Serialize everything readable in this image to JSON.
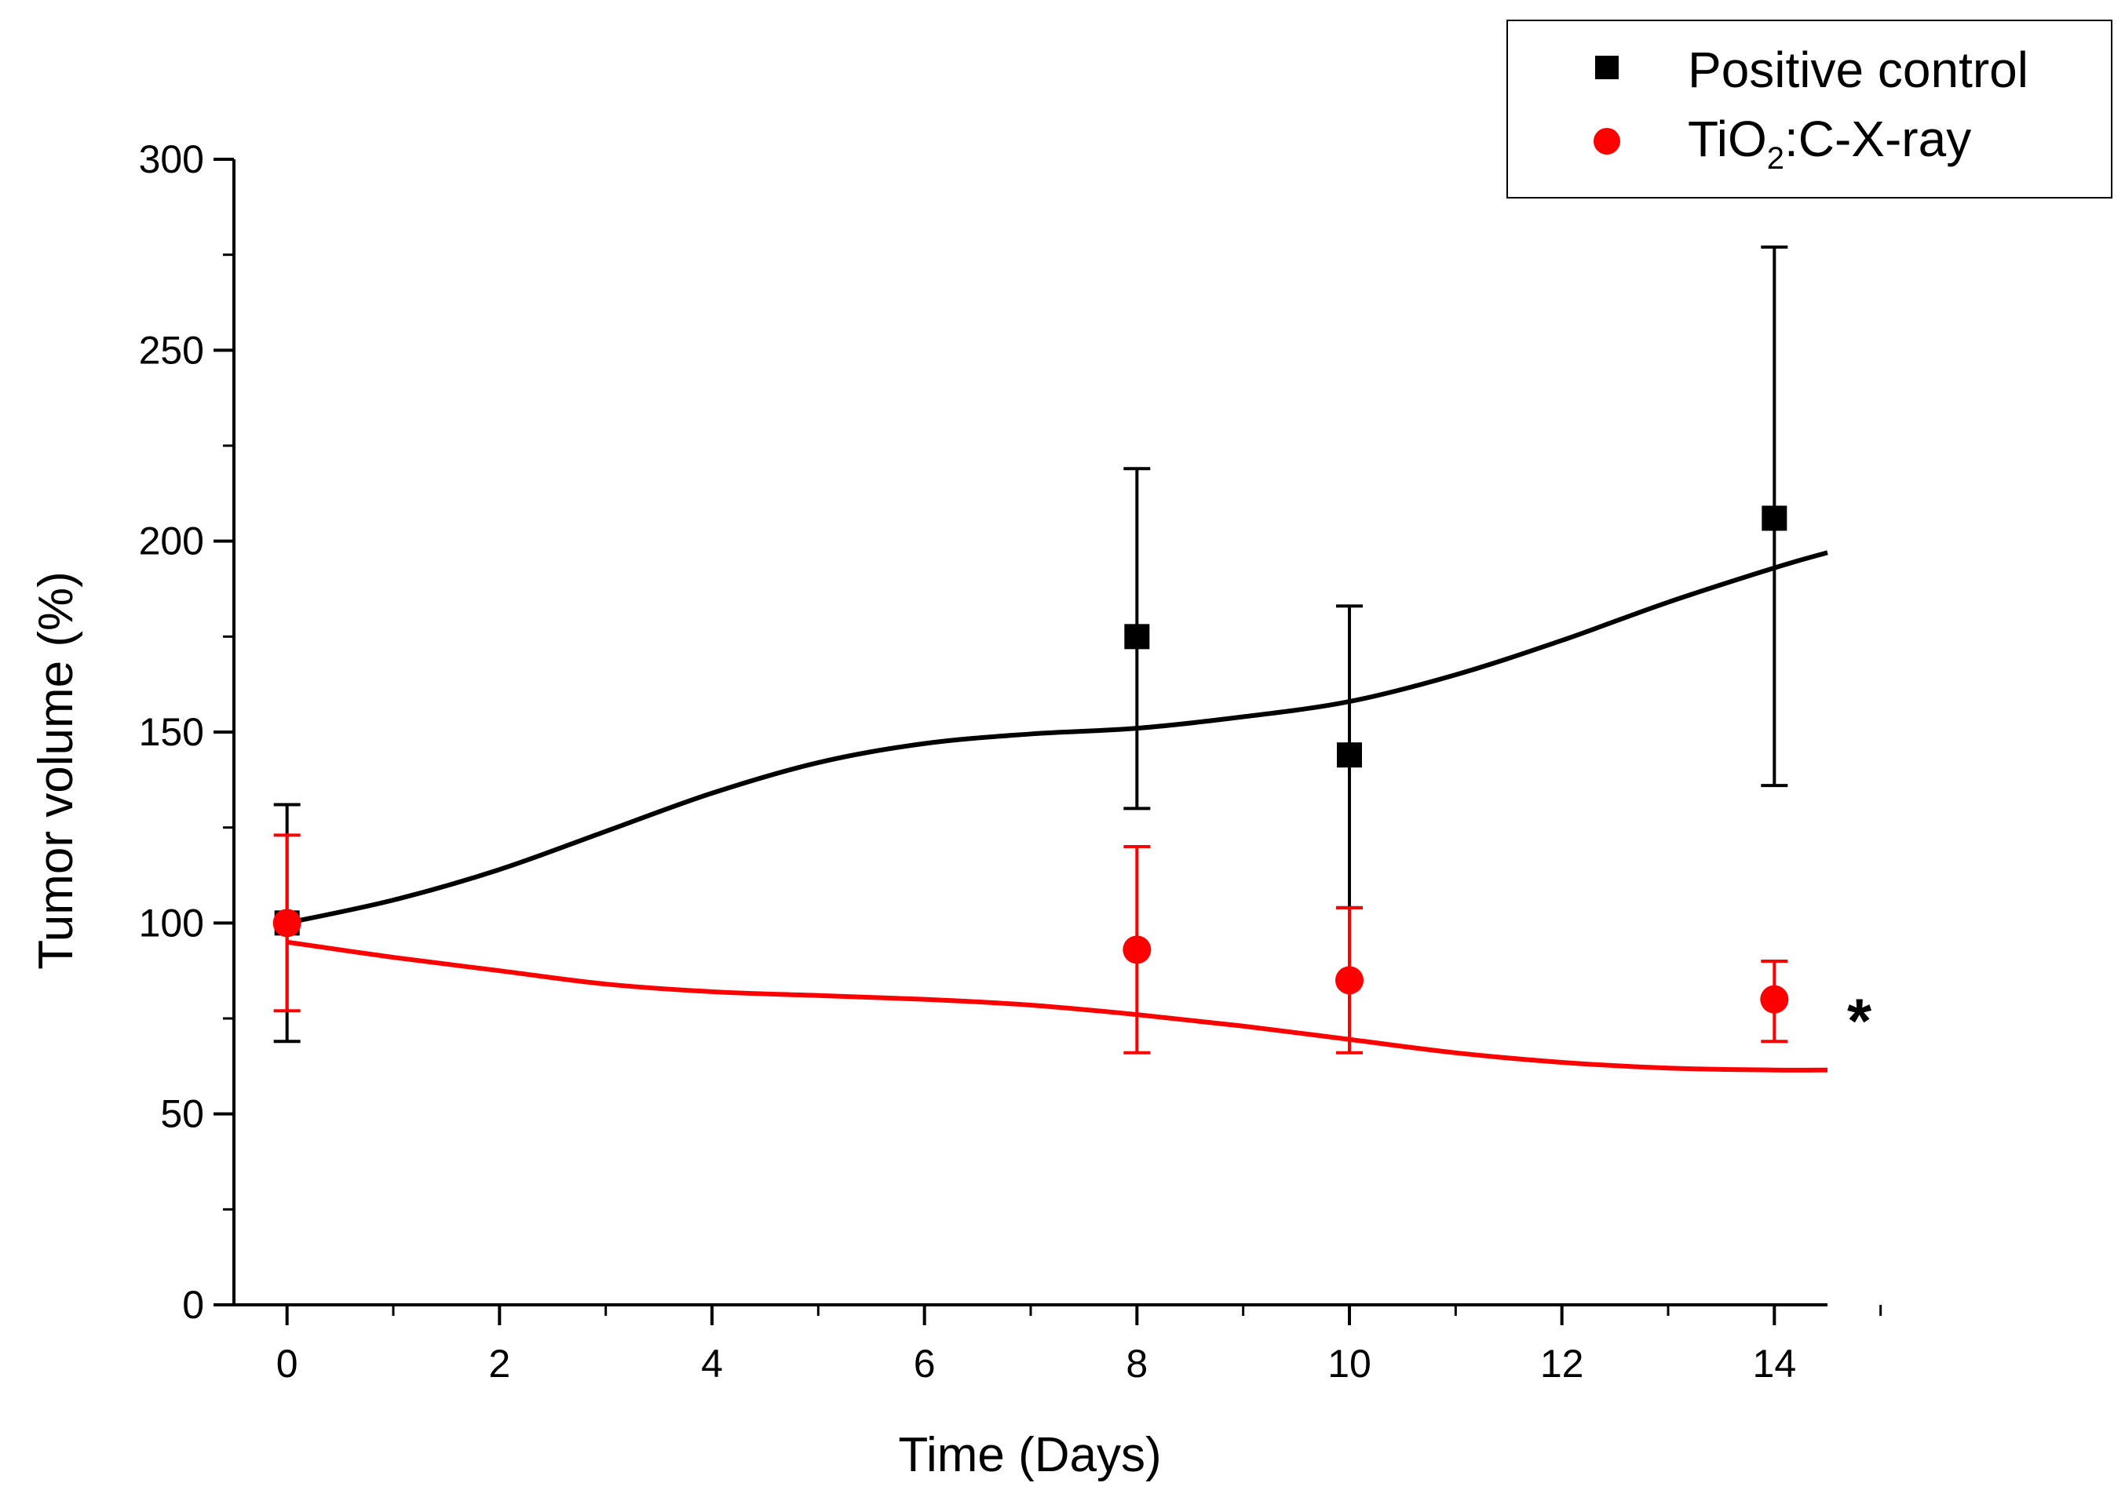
{
  "chart_data": {
    "type": "scatter",
    "title": "",
    "xlabel": "Time (Days)",
    "ylabel": "Tumor volume (%)",
    "xlim": [
      -0.5,
      14.5
    ],
    "ylim": [
      0,
      300
    ],
    "xticks": [
      0,
      2,
      4,
      6,
      8,
      10,
      12,
      14
    ],
    "yticks": [
      0,
      50,
      100,
      150,
      200,
      250,
      300
    ],
    "xtick_labels": [
      "0",
      "2",
      "4",
      "6",
      "8",
      "10",
      "12",
      "14"
    ],
    "ytick_labels": [
      "0",
      "50",
      "100",
      "150",
      "200",
      "250",
      "300"
    ],
    "legend_position": "top-right",
    "series": [
      {
        "name": "Positive control",
        "marker": "square",
        "color": "#000000",
        "points": [
          {
            "x": 0,
            "y": 100,
            "err_low": 69,
            "err_high": 131
          },
          {
            "x": 8,
            "y": 175,
            "err_low": 130,
            "err_high": 219
          },
          {
            "x": 10,
            "y": 144,
            "err_low": 104,
            "err_high": 183
          },
          {
            "x": 14,
            "y": 206,
            "err_low": 136,
            "err_high": 277
          }
        ],
        "fit": [
          [
            0,
            100
          ],
          [
            1,
            106
          ],
          [
            2,
            114
          ],
          [
            3,
            124
          ],
          [
            4,
            134
          ],
          [
            5,
            142
          ],
          [
            6,
            147
          ],
          [
            7,
            149.5
          ],
          [
            8,
            151
          ],
          [
            9,
            154
          ],
          [
            10,
            158
          ],
          [
            11,
            165
          ],
          [
            12,
            174
          ],
          [
            13,
            184
          ],
          [
            14,
            193
          ],
          [
            14.5,
            197
          ]
        ]
      },
      {
        "name": "TiO",
        "name_sub": "2",
        "name_suffix": ":C-X-ray",
        "marker": "circle",
        "color": "#ff0000",
        "points": [
          {
            "x": 0,
            "y": 100,
            "err_low": 77,
            "err_high": 123
          },
          {
            "x": 8,
            "y": 93,
            "err_low": 66,
            "err_high": 120
          },
          {
            "x": 10,
            "y": 85,
            "err_low": 66,
            "err_high": 104
          },
          {
            "x": 14,
            "y": 80,
            "err_low": 69,
            "err_high": 90
          }
        ],
        "fit": [
          [
            0,
            95
          ],
          [
            1,
            91
          ],
          [
            2,
            87.5
          ],
          [
            3,
            84
          ],
          [
            4,
            82
          ],
          [
            5,
            81
          ],
          [
            6,
            80
          ],
          [
            7,
            78.5
          ],
          [
            8,
            76
          ],
          [
            9,
            73
          ],
          [
            10,
            69.5
          ],
          [
            11,
            66
          ],
          [
            12,
            63.5
          ],
          [
            13,
            62
          ],
          [
            14,
            61.5
          ],
          [
            14.5,
            61.5
          ]
        ]
      }
    ],
    "annotations": [
      {
        "text": "*",
        "x": 14.8,
        "y": 77
      }
    ]
  }
}
